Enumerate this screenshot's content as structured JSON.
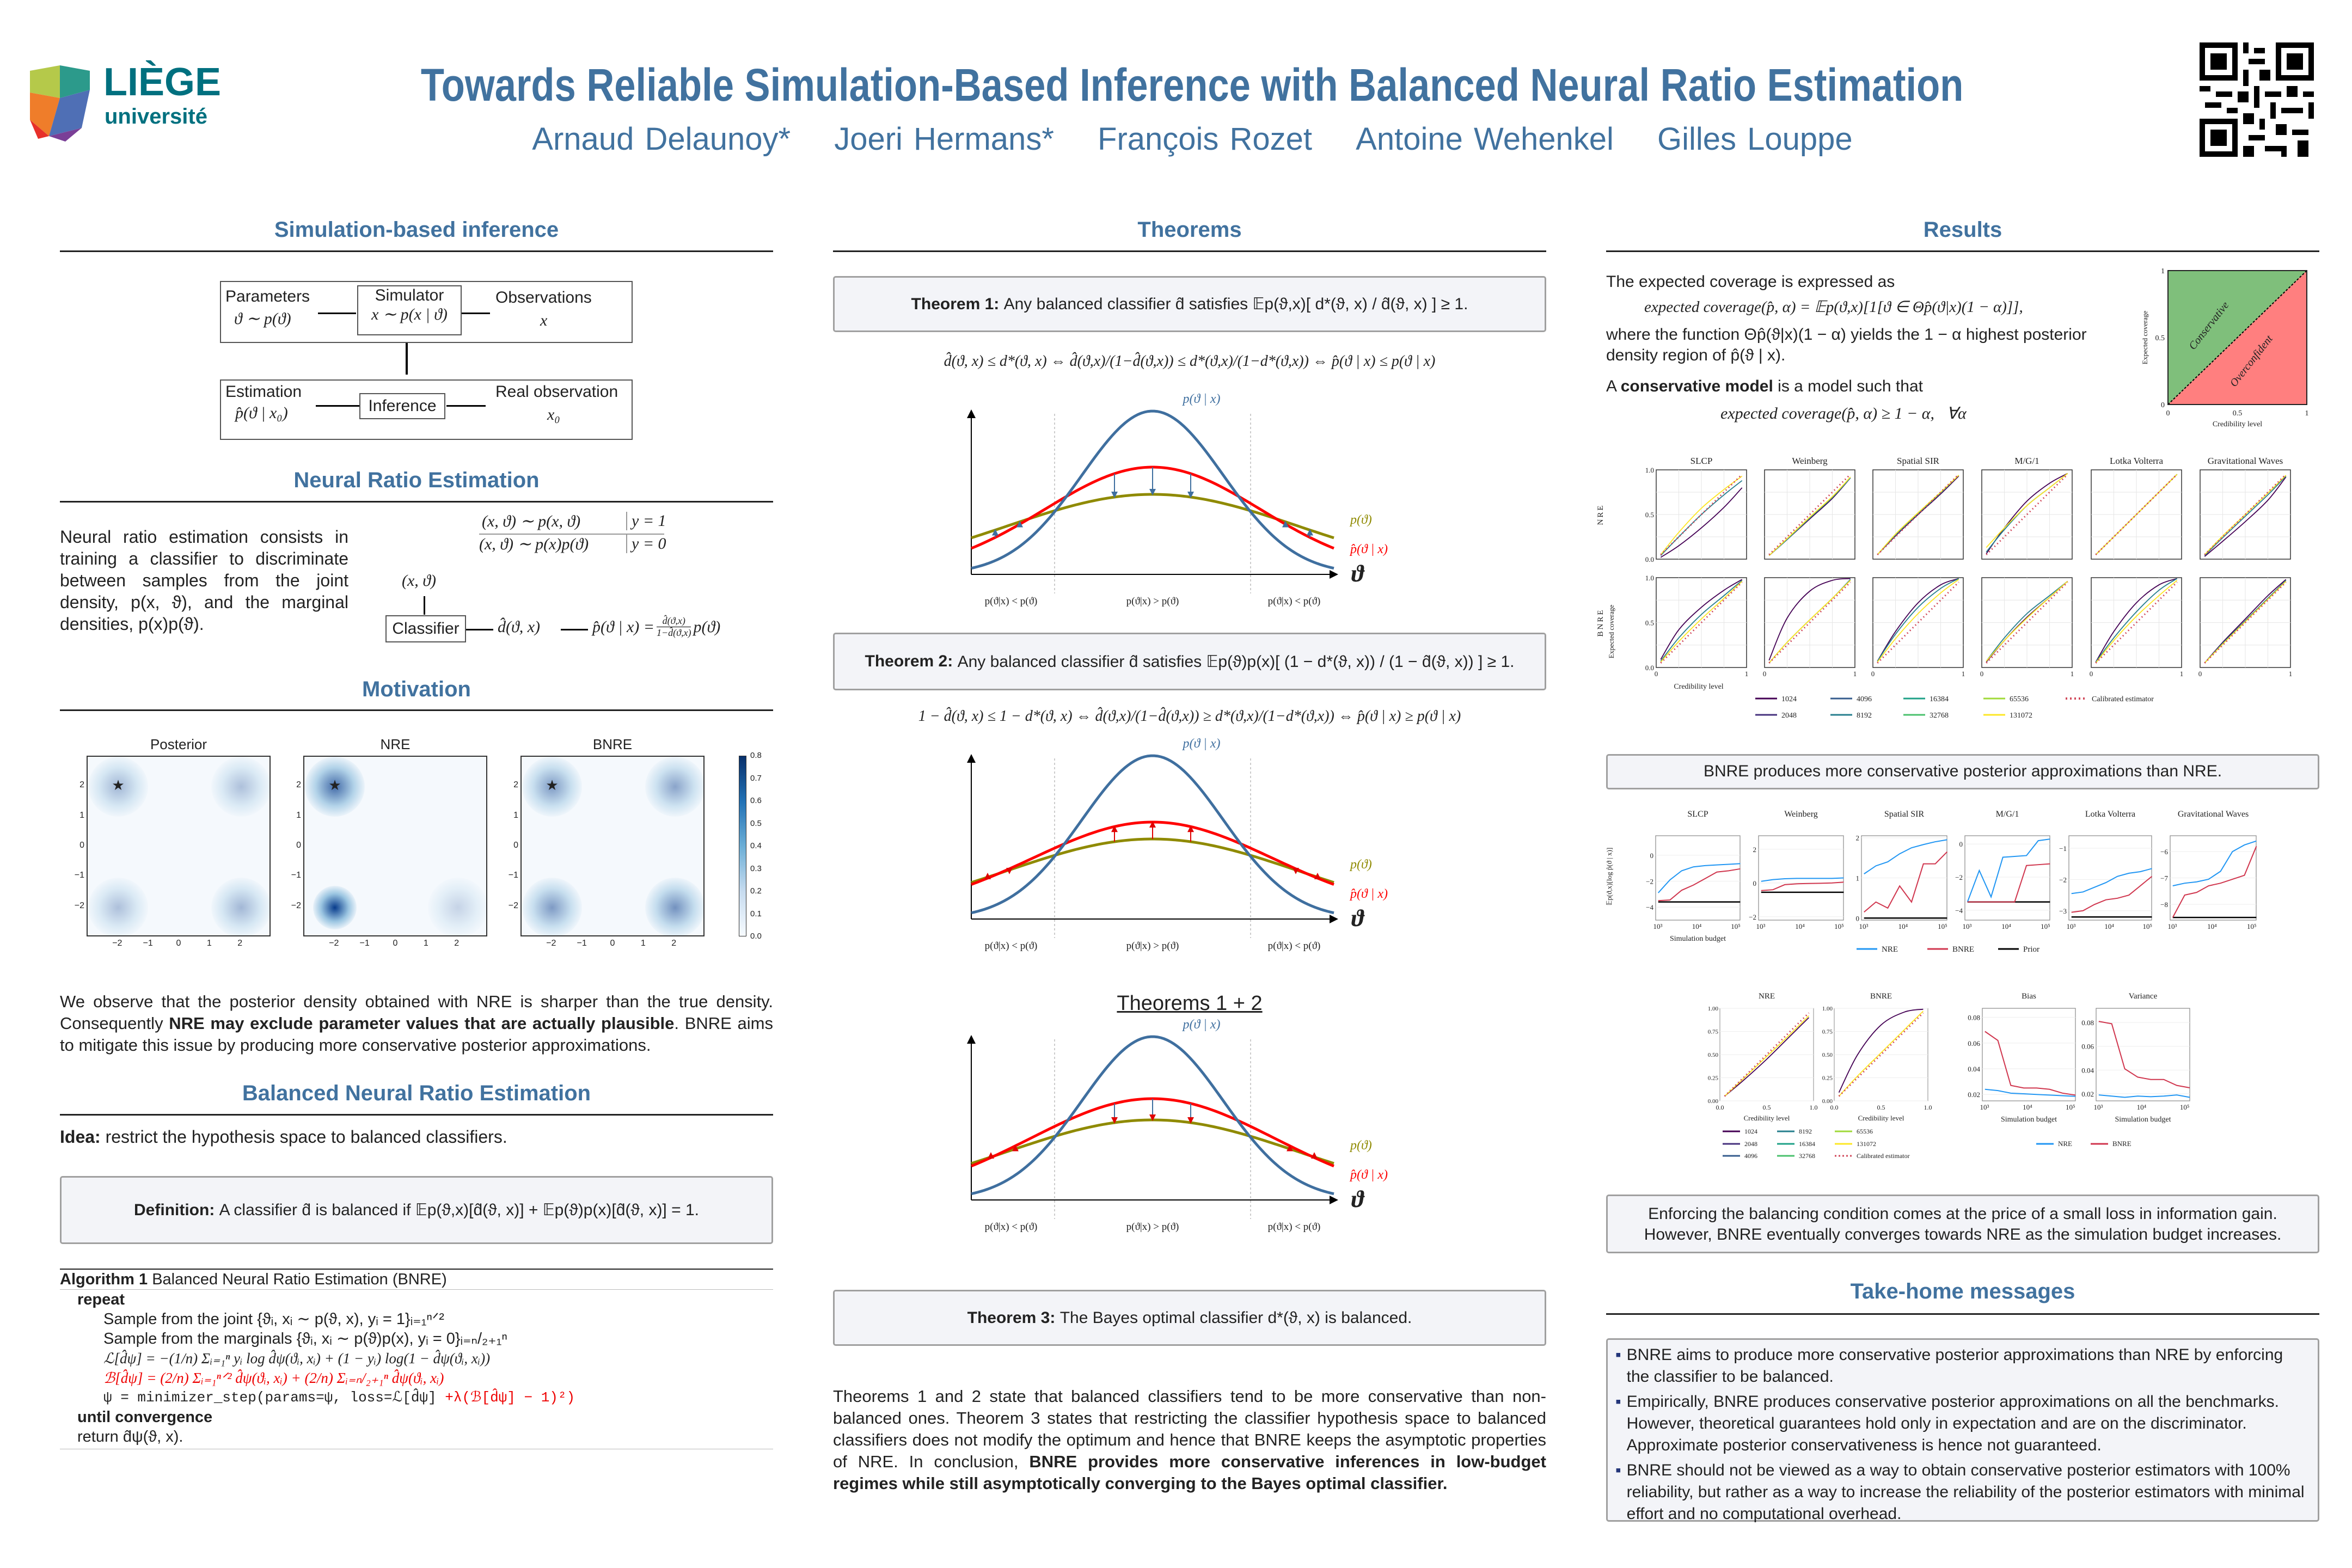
{
  "header": {
    "logo": {
      "line1": "LIÈGE",
      "line2": "université"
    },
    "title": "Towards Reliable Simulation-Based Inference with Balanced Neural Ratio Estimation",
    "authors": [
      "Arnaud Delaunoy*",
      "Joeri Hermans*",
      "François Rozet",
      "Antoine Wehenkel",
      "Gilles Louppe"
    ],
    "qr_icon": "qr-code"
  },
  "colors": {
    "heading": "#41729f",
    "nre": "#2196f3",
    "bnre": "#d0364e",
    "prior": "#000000",
    "calibrated": "#d1495b",
    "conservative": "#7fbf7b",
    "overconfident": "#ff7f7f",
    "true_posterior": "#3f6f9f",
    "approx_posterior": "#ff0000",
    "prior_curve": "#8f8a00"
  },
  "sbi": {
    "heading": "Simulation-based inference",
    "params_label": "Parameters",
    "params_math": "ϑ ∼ p(ϑ)",
    "simulator_label": "Simulator",
    "simulator_math": "x ∼ p(x | ϑ)",
    "obs_label": "Observations",
    "obs_math": "x",
    "estimation_label": "Estimation",
    "estimation_math": "p̂(ϑ | x₀)",
    "inference_label": "Inference",
    "real_label": "Real observation",
    "real_math": "x₀"
  },
  "nre": {
    "heading": "Neural Ratio Estimation",
    "text": "Neural ratio estimation consists in training a classifier to discriminate between samples from the joint density, p(x, ϑ), and the marginal densities, p(x)p(ϑ).",
    "joint": "(x, ϑ) ∼ p(x, ϑ)",
    "joint_y": "y = 1",
    "marg": "(x, ϑ) ∼ p(x)p(ϑ)",
    "marg_y": "y = 0",
    "input": "(x, ϑ)",
    "classifier": "Classifier",
    "output": "d̂(ϑ, x)",
    "posterior": "p̂(ϑ | x) =",
    "frac_num": "d̂(ϑ,x)",
    "frac_den": "1−d̂(ϑ,x)",
    "posterior_tail": "p(ϑ)"
  },
  "motivation": {
    "heading": "Motivation",
    "panels": [
      {
        "title": "Posterior"
      },
      {
        "title": "NRE"
      },
      {
        "title": "BNRE"
      }
    ],
    "x_ticks": [
      "−2",
      "−1",
      "0",
      "1",
      "2"
    ],
    "y_ticks": [
      "2",
      "1",
      "0",
      "−1",
      "−2"
    ],
    "colorbar_ticks": [
      "0.8",
      "0.7",
      "0.6",
      "0.5",
      "0.4",
      "0.3",
      "0.2",
      "0.1",
      "0.0"
    ],
    "text_1": "We observe that the posterior density obtained with NRE is sharper than the true density. Consequently ",
    "text_bold": "NRE may exclude parameter values that are actually plausible",
    "text_2": ". BNRE aims to mitigate this issue by producing more conservative posterior approximations."
  },
  "bnre": {
    "heading": "Balanced Neural Ratio Estimation",
    "idea_label": "Idea:",
    "idea_text": "restrict the hypothesis space to balanced classifiers.",
    "definition_label": "Definition:",
    "definition_text": "A classifier d̂ is balanced if 𝔼p(ϑ,x)[d̂(ϑ, x)] + 𝔼p(ϑ)p(x)[d̂(ϑ, x)] = 1.",
    "algorithm": {
      "label": "Algorithm 1",
      "title": "Balanced Neural Ratio Estimation (BNRE)",
      "repeat": "repeat",
      "lines": [
        "Sample from the joint {ϑᵢ, xᵢ ∼ p(ϑ, x), yᵢ = 1}ᵢ₌₁ⁿᐟ²",
        "Sample from the marginals {ϑᵢ, xᵢ ∼ p(ϑ)p(x), yᵢ = 0}ᵢ₌ₙ/₂₊₁ⁿ",
        "ℒ[d̂ψ] = −(1/n) Σᵢ₌₁ⁿ yᵢ log d̂ψ(ϑᵢ, xᵢ) + (1 − yᵢ) log(1 − d̂ψ(ϑᵢ, xᵢ))"
      ],
      "balance_line": "ℬ[d̂ψ] = (2/n) Σᵢ₌₁ⁿᐟ² d̂ψ(ϑᵢ, xᵢ) + (2/n) Σᵢ₌ₙ/₂₊₁ⁿ d̂ψ(ϑᵢ, xᵢ)",
      "step_line": "ψ = minimizer_step(params=ψ, loss=ℒ[d̂ψ]",
      "step_red": " +λ(ℬ[d̂ψ] − 1)²)",
      "until": "until convergence",
      "return": "return d̂ψ(ϑ, x)."
    }
  },
  "theorems": {
    "heading": "Theorems",
    "t1_label": "Theorem 1:",
    "t1_text": "Any balanced classifier d̂ satisfies 𝔼p(ϑ,x)[ d*(ϑ, x) / d̂(ϑ, x) ] ≥ 1.",
    "t1_eq": "d̂(ϑ, x) ≤ d*(ϑ, x) ⇔ d̂(ϑ,x)/(1−d̂(ϑ,x)) ≤ d*(ϑ,x)/(1−d*(ϑ,x)) ⇔ p̂(ϑ | x) ≤ p(ϑ | x)",
    "t2_label": "Theorem 2:",
    "t2_text": "Any balanced classifier d̂ satisfies 𝔼p(ϑ)p(x)[ (1 − d*(ϑ, x)) / (1 − d̂(ϑ, x)) ] ≥ 1.",
    "t2_eq": "1 − d̂(ϑ, x) ≤ 1 − d*(ϑ, x) ⇔ d̂(ϑ,x)/(1−d̂(ϑ,x)) ≥ d*(ϑ,x)/(1−d*(ϑ,x)) ⇔ p̂(ϑ | x) ≥ p(ϑ | x)",
    "t12_heading": "Theorems 1 + 2",
    "t3_label": "Theorem 3:",
    "t3_text": "The Bayes optimal classifier d*(ϑ, x) is balanced.",
    "plot_labels": {
      "true": "p(ϑ | x)",
      "prior": "p(ϑ)",
      "approx": "p̂(ϑ | x)",
      "axis": "ϑ",
      "region_left": "p(ϑ|x) < p(ϑ)",
      "region_mid": "p(ϑ|x) > p(ϑ)",
      "region_right": "p(ϑ|x) < p(ϑ)"
    },
    "conclusion_1": "Theorems 1 and 2 state that balanced classifiers tend to be more conservative than non-balanced ones. Theorem 3 states that restricting the classifier hypothesis space to balanced classifiers does not modify the optimum and hence that BNRE keeps the asymptotic properties of NRE. In conclusion, ",
    "conclusion_bold": "BNRE provides more conservative inferences in low-budget regimes while still asymptotically converging to the Bayes optimal classifier."
  },
  "results": {
    "heading": "Results",
    "intro": "The expected coverage is expressed as",
    "coverage_eq": "expected coverage(p̂, α) = 𝔼p(ϑ,x)[1[ϑ ∈ Θp̂(ϑ|x)(1 − α)]],",
    "where_text": "where the function Θp̂(ϑ|x)(1 − α) yields the 1 − α highest posterior density region of p̂(ϑ | x).",
    "conservative_pre": "A ",
    "conservative_bold": "conservative model",
    "conservative_post": " is a model such that",
    "conservative_eq": "expected coverage(p̂, α) ≥ 1 − α,   ∀α",
    "diagram": {
      "conservative": "Conservative",
      "overconfident": "Overconfident",
      "xlabel": "Credibility level",
      "ylabel": "Expected coverage",
      "x_ticks": [
        "0",
        "0.5",
        "1"
      ],
      "y_ticks": [
        "0",
        "0.5",
        "1"
      ]
    },
    "caption_1": "BNRE produces more conservative posterior approximations than NRE.",
    "caption_2": "Enforcing the balancing condition comes at the price of a small loss in information gain. However, BNRE eventually converges towards NRE as the simulation budget increases."
  },
  "takehome": {
    "heading": "Take-home messages",
    "items": [
      "BNRE aims to produce more conservative posterior approximations than NRE by enforcing the classifier to be balanced.",
      "Empirically, BNRE produces conservative posterior approximations on all the benchmarks. However, theoretical guarantees hold only in expectation and are on the discriminator. Approximate posterior conservativeness is hence not guaranteed.",
      "BNRE should not be viewed as a way to obtain conservative posterior estimators with 100% reliability, but rather as a way to increase the reliability of the posterior estimators with minimal effort and no computational overhead."
    ]
  },
  "chart_data": [
    {
      "id": "coverage_grid",
      "type": "line",
      "panels": [
        "SLCP",
        "Weinberg",
        "Spatial SIR",
        "M/G/1",
        "Lotka Volterra",
        "Gravitational Waves"
      ],
      "rows": [
        "NRE",
        "BNRE"
      ],
      "xlabel": "Credibility level",
      "ylabel": "Expected coverage",
      "xlim": [
        0,
        1
      ],
      "ylim": [
        0,
        1
      ],
      "x_ticks": [
        "0",
        "1"
      ],
      "y_ticks": [
        "0.0",
        "0.5",
        "1.0"
      ],
      "legend": [
        "1024",
        "2048",
        "4096",
        "8192",
        "16384",
        "32768",
        "65536",
        "131072",
        "Calibrated estimator"
      ],
      "series_colors": {
        "1024": "#440154",
        "2048": "#46327e",
        "4096": "#365c8d",
        "8192": "#277f8e",
        "16384": "#1fa187",
        "32768": "#4ac16d",
        "65536": "#a0da39",
        "131072": "#fde725"
      },
      "x": [
        0.05,
        0.25,
        0.5,
        0.75,
        0.95
      ],
      "values": {
        "NRE": [
          {
            "1024": [
              0.02,
              0.15,
              0.35,
              0.58,
              0.8
            ],
            "8192": [
              0.04,
              0.25,
              0.5,
              0.72,
              0.88
            ],
            "131072": [
              0.05,
              0.3,
              0.57,
              0.78,
              0.93
            ]
          },
          {
            "1024": [
              0.04,
              0.22,
              0.45,
              0.68,
              0.91
            ],
            "8192": [
              0.04,
              0.22,
              0.46,
              0.69,
              0.91
            ],
            "131072": [
              0.04,
              0.23,
              0.47,
              0.7,
              0.92
            ]
          },
          {
            "1024": [
              0.05,
              0.26,
              0.5,
              0.73,
              0.93
            ],
            "8192": [
              0.05,
              0.27,
              0.51,
              0.74,
              0.94
            ],
            "131072": [
              0.05,
              0.28,
              0.52,
              0.75,
              0.94
            ]
          },
          {
            "1024": [
              0.06,
              0.35,
              0.65,
              0.85,
              0.96
            ],
            "8192": [
              0.08,
              0.33,
              0.6,
              0.8,
              0.96
            ],
            "131072": [
              0.13,
              0.35,
              0.6,
              0.8,
              0.96
            ]
          },
          {
            "1024": [
              0.05,
              0.25,
              0.5,
              0.75,
              0.95
            ],
            "8192": [
              0.05,
              0.25,
              0.5,
              0.75,
              0.95
            ],
            "131072": [
              0.05,
              0.25,
              0.5,
              0.75,
              0.95
            ]
          },
          {
            "1024": [
              0.03,
              0.2,
              0.42,
              0.66,
              0.92
            ],
            "8192": [
              0.04,
              0.24,
              0.48,
              0.72,
              0.93
            ],
            "131072": [
              0.05,
              0.26,
              0.5,
              0.74,
              0.94
            ]
          }
        ],
        "BNRE": [
          {
            "1024": [
              0.09,
              0.42,
              0.67,
              0.86,
              0.98
            ],
            "8192": [
              0.07,
              0.33,
              0.59,
              0.8,
              0.97
            ],
            "131072": [
              0.06,
              0.29,
              0.54,
              0.77,
              0.96
            ]
          },
          {
            "1024": [
              0.08,
              0.55,
              0.85,
              0.97,
              0.99
            ],
            "8192": [
              0.05,
              0.28,
              0.53,
              0.77,
              0.98
            ],
            "131072": [
              0.05,
              0.28,
              0.53,
              0.77,
              0.97
            ]
          },
          {
            "1024": [
              0.07,
              0.4,
              0.72,
              0.92,
              0.99
            ],
            "8192": [
              0.07,
              0.37,
              0.67,
              0.88,
              0.99
            ],
            "131072": [
              0.06,
              0.32,
              0.6,
              0.83,
              0.98
            ]
          },
          {
            "1024": [
              0.06,
              0.3,
              0.56,
              0.78,
              0.96
            ],
            "8192": [
              0.07,
              0.33,
              0.6,
              0.8,
              0.96
            ],
            "131072": [
              0.07,
              0.3,
              0.55,
              0.78,
              0.96
            ]
          },
          {
            "1024": [
              0.06,
              0.4,
              0.72,
              0.92,
              0.99
            ],
            "8192": [
              0.06,
              0.33,
              0.62,
              0.86,
              0.99
            ],
            "131072": [
              0.05,
              0.3,
              0.57,
              0.8,
              0.97
            ]
          },
          {
            "1024": [
              0.05,
              0.28,
              0.54,
              0.8,
              0.98
            ],
            "8192": [
              0.05,
              0.27,
              0.52,
              0.77,
              0.97
            ],
            "131072": [
              0.05,
              0.26,
              0.51,
              0.76,
              0.96
            ]
          }
        ]
      }
    },
    {
      "id": "information_gain",
      "type": "line",
      "panels": [
        "SLCP",
        "Weinberg",
        "Spatial SIR",
        "M/G/1",
        "Lotka Volterra",
        "Gravitational Waves"
      ],
      "xlabel": "Simulation budget",
      "ylabel": "𝔼p(ϑ,x)[log p̂(ϑ | x)]",
      "xscale": "log",
      "x": [
        1024,
        2048,
        4096,
        8192,
        16384,
        32768,
        65536,
        131072
      ],
      "x_ticks": [
        "10³",
        "10⁴",
        "10⁵"
      ],
      "legend": [
        "NRE",
        "BNRE",
        "Prior"
      ],
      "ylims": [
        [
          -5,
          1.5
        ],
        [
          -2.2,
          2.8
        ],
        [
          -0.05,
          2.05
        ],
        [
          -4.6,
          0.5
        ],
        [
          -3.3,
          -0.6
        ],
        [
          -8.6,
          -5.4
        ]
      ],
      "y_ticks": [
        [
          -4,
          -2,
          0
        ],
        [
          -2,
          0,
          2
        ],
        [
          0,
          1,
          2
        ],
        [
          -4,
          -2,
          0
        ],
        [
          -3,
          -2,
          -1
        ],
        [
          -8,
          -7,
          -6
        ]
      ],
      "series": {
        "NRE": [
          [
            -2.9,
            -1.9,
            -1.2,
            -0.9,
            -0.8,
            -0.75,
            -0.7,
            -0.65
          ],
          [
            0.1,
            0.2,
            0.25,
            0.27,
            0.27,
            0.27,
            0.27,
            0.3
          ],
          [
            1.1,
            1.3,
            1.4,
            1.6,
            1.75,
            1.83,
            1.9,
            1.95
          ],
          [
            -3.5,
            -1.6,
            -3.2,
            -0.8,
            -0.75,
            -0.7,
            0.2,
            0.3
          ],
          [
            -2.45,
            -2.4,
            -2.25,
            -2.1,
            -1.9,
            -1.8,
            -1.75,
            -1.65
          ],
          [
            -7.3,
            -7.2,
            -7.15,
            -7.05,
            -6.75,
            -6.0,
            -5.75,
            -5.6
          ]
        ],
        "BNRE": [
          [
            -3.5,
            -3.45,
            -2.7,
            -2.3,
            -1.8,
            -1.3,
            -1.2,
            -1.05
          ],
          [
            -0.45,
            -0.4,
            -0.1,
            -0.05,
            -0.03,
            -0.02,
            0.0,
            0.05
          ],
          [
            0.15,
            0.4,
            0.25,
            0.8,
            0.4,
            1.35,
            1.35,
            1.65
          ],
          [
            -3.5,
            -3.5,
            -3.5,
            -3.5,
            -3.5,
            -1.3,
            -1.25,
            -1.2
          ],
          [
            -3.05,
            -3.0,
            -2.8,
            -2.65,
            -2.6,
            -2.5,
            -2.2,
            -1.9
          ],
          [
            -8.5,
            -7.65,
            -7.55,
            -7.3,
            -7.2,
            -7.05,
            -6.9,
            -5.8
          ]
        ],
        "Prior": [
          -3.6,
          -0.55,
          0,
          -3.5,
          -3.2,
          -8.5
        ]
      }
    },
    {
      "id": "coverage_small",
      "type": "line",
      "panels": [
        "NRE",
        "BNRE"
      ],
      "xlabel": "Credibility level",
      "ylabel": "Expected coverage",
      "x_ticks": [
        "0.0",
        "0.5",
        "1.0"
      ],
      "y_ticks": [
        "0.00",
        "0.25",
        "0.50",
        "0.75",
        "1.00"
      ],
      "legend": [
        "1024",
        "2048",
        "4096",
        "8192",
        "16384",
        "32768",
        "65536",
        "131072",
        "Calibrated estimator"
      ],
      "x": [
        0.05,
        0.25,
        0.5,
        0.75,
        0.95
      ],
      "values": [
        {
          "1024": [
            0.05,
            0.22,
            0.45,
            0.7,
            0.9
          ],
          "131072": [
            0.05,
            0.24,
            0.48,
            0.72,
            0.92
          ]
        },
        {
          "1024": [
            0.09,
            0.5,
            0.82,
            0.96,
            0.99
          ],
          "131072": [
            0.05,
            0.27,
            0.52,
            0.77,
            0.97
          ]
        }
      ]
    },
    {
      "id": "bias_variance",
      "type": "line",
      "panels": [
        "Bias",
        "Variance"
      ],
      "xlabel": "Simulation budget",
      "xscale": "log",
      "x": [
        1024,
        2048,
        4096,
        8192,
        16384,
        32768,
        65536,
        131072
      ],
      "x_ticks": [
        "10³",
        "10⁴",
        "10⁵"
      ],
      "legend": [
        "NRE",
        "BNRE"
      ],
      "ylims": [
        [
          0.015,
          0.087
        ],
        [
          0.014,
          0.092
        ]
      ],
      "y_ticks": [
        [
          "0.02",
          "0.04",
          "0.06",
          "0.08"
        ],
        [
          "0.02",
          "0.04",
          "0.06",
          "0.08"
        ]
      ],
      "series": {
        "NRE": [
          [
            0.024,
            0.023,
            0.021,
            0.0205,
            0.02,
            0.0195,
            0.019,
            0.0185
          ],
          [
            0.019,
            0.018,
            0.017,
            0.018,
            0.0175,
            0.018,
            0.019,
            0.017
          ]
        ],
        "BNRE": [
          [
            0.069,
            0.062,
            0.027,
            0.025,
            0.025,
            0.024,
            0.021,
            0.0195
          ],
          [
            0.081,
            0.079,
            0.041,
            0.034,
            0.032,
            0.032,
            0.027,
            0.025
          ]
        ]
      }
    }
  ]
}
